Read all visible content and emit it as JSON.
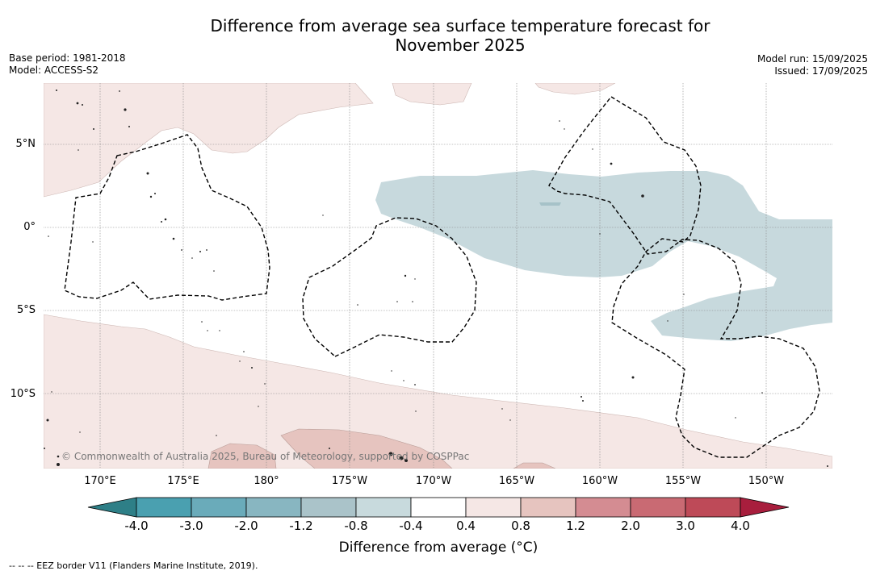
{
  "title_line1": "Difference from average sea surface temperature forecast for",
  "title_line2": "November 2025",
  "base_period": "Base period: 1981-2018",
  "model": "Model: ACCESS-S2",
  "model_run": "Model run: 15/09/2025",
  "issued": "Issued: 17/09/2025",
  "lat_labels": [
    "5°N",
    "0°",
    "5°S",
    "10°S"
  ],
  "lon_labels": [
    "170°E",
    "175°E",
    "180°",
    "175°W",
    "170°W",
    "165°W",
    "160°W",
    "155°W",
    "150°W"
  ],
  "credit": "© Commonwealth of Australia 2025, Bureau of Meteorology, supported by COSPPac",
  "colorbar": {
    "ticks": [
      "-4.0",
      "-3.0",
      "-2.0",
      "-1.2",
      "-0.8",
      "-0.4",
      "0.4",
      "0.8",
      "1.2",
      "2.0",
      "3.0",
      "4.0"
    ],
    "colors": [
      "#2e7f87",
      "#4aa0b0",
      "#6aabba",
      "#88b6c1",
      "#aac3c9",
      "#c8dadd",
      "#ffffff",
      "#f5e7e5",
      "#e6c4bf",
      "#d48c92",
      "#c96a73",
      "#be4a58",
      "#a81e3d"
    ],
    "label": "Difference from average ($^\\circ$C)",
    "label_display": "Difference from average (°C)"
  },
  "footnote": "--  --  -- EEZ border V11 (Flanders Marine Institute, 2019).",
  "colors": {
    "cool_anomaly": "#c7d9dd",
    "warm_light": "#f5e7e5",
    "warm_mid": "#e6c4bf"
  }
}
